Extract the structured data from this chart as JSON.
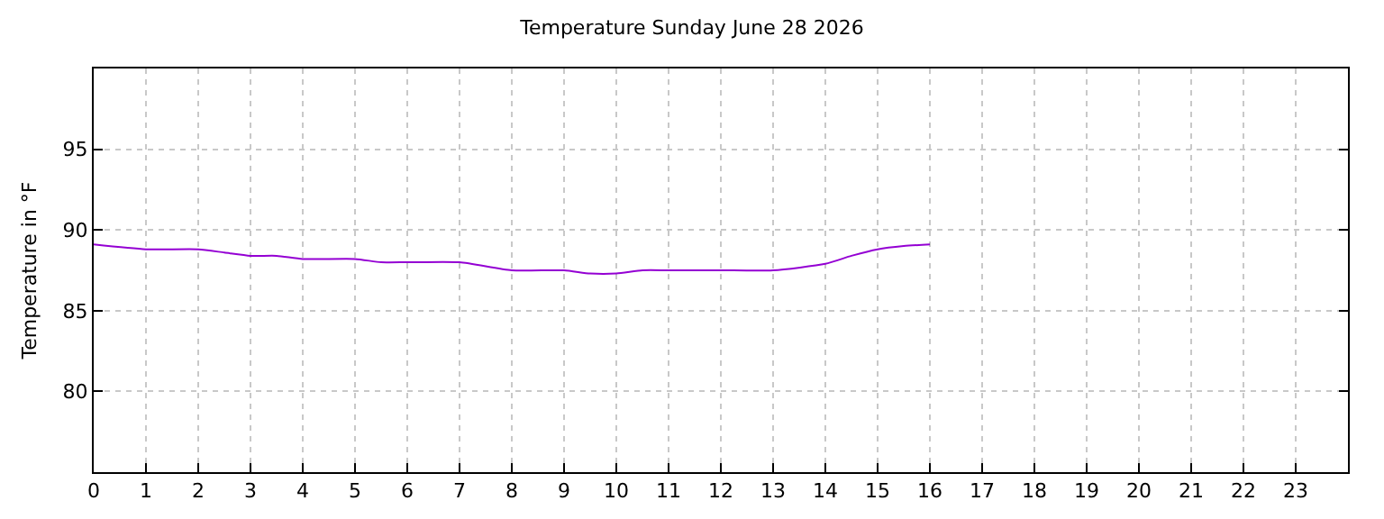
{
  "chart_data": {
    "type": "line",
    "title": "Temperature Sunday June 28 2026",
    "ylabel": "Temperature in °F",
    "x": [
      0,
      1,
      2,
      2.5,
      3,
      3.5,
      4,
      5,
      5.5,
      6,
      7,
      8,
      9,
      9.5,
      10,
      10.5,
      11,
      12,
      13,
      14,
      14.5,
      15,
      15.5,
      16
    ],
    "series": [
      {
        "color": "#9400d3",
        "values": [
          89.1,
          88.8,
          88.8,
          88.6,
          88.4,
          88.4,
          88.2,
          88.2,
          88.0,
          88.0,
          88.0,
          87.5,
          87.5,
          87.3,
          87.3,
          87.5,
          87.5,
          87.5,
          87.5,
          87.9,
          88.4,
          88.8,
          89.0,
          89.1
        ]
      }
    ],
    "xlim": [
      0,
      24
    ],
    "xticks": [
      0,
      1,
      2,
      3,
      4,
      5,
      6,
      7,
      8,
      9,
      10,
      11,
      12,
      13,
      14,
      15,
      16,
      17,
      18,
      19,
      20,
      21,
      22,
      23
    ],
    "ylim": [
      75,
      100
    ],
    "yticks": [
      80,
      85,
      90,
      95
    ],
    "grid": true,
    "line_style": "solid",
    "marker": "none"
  }
}
